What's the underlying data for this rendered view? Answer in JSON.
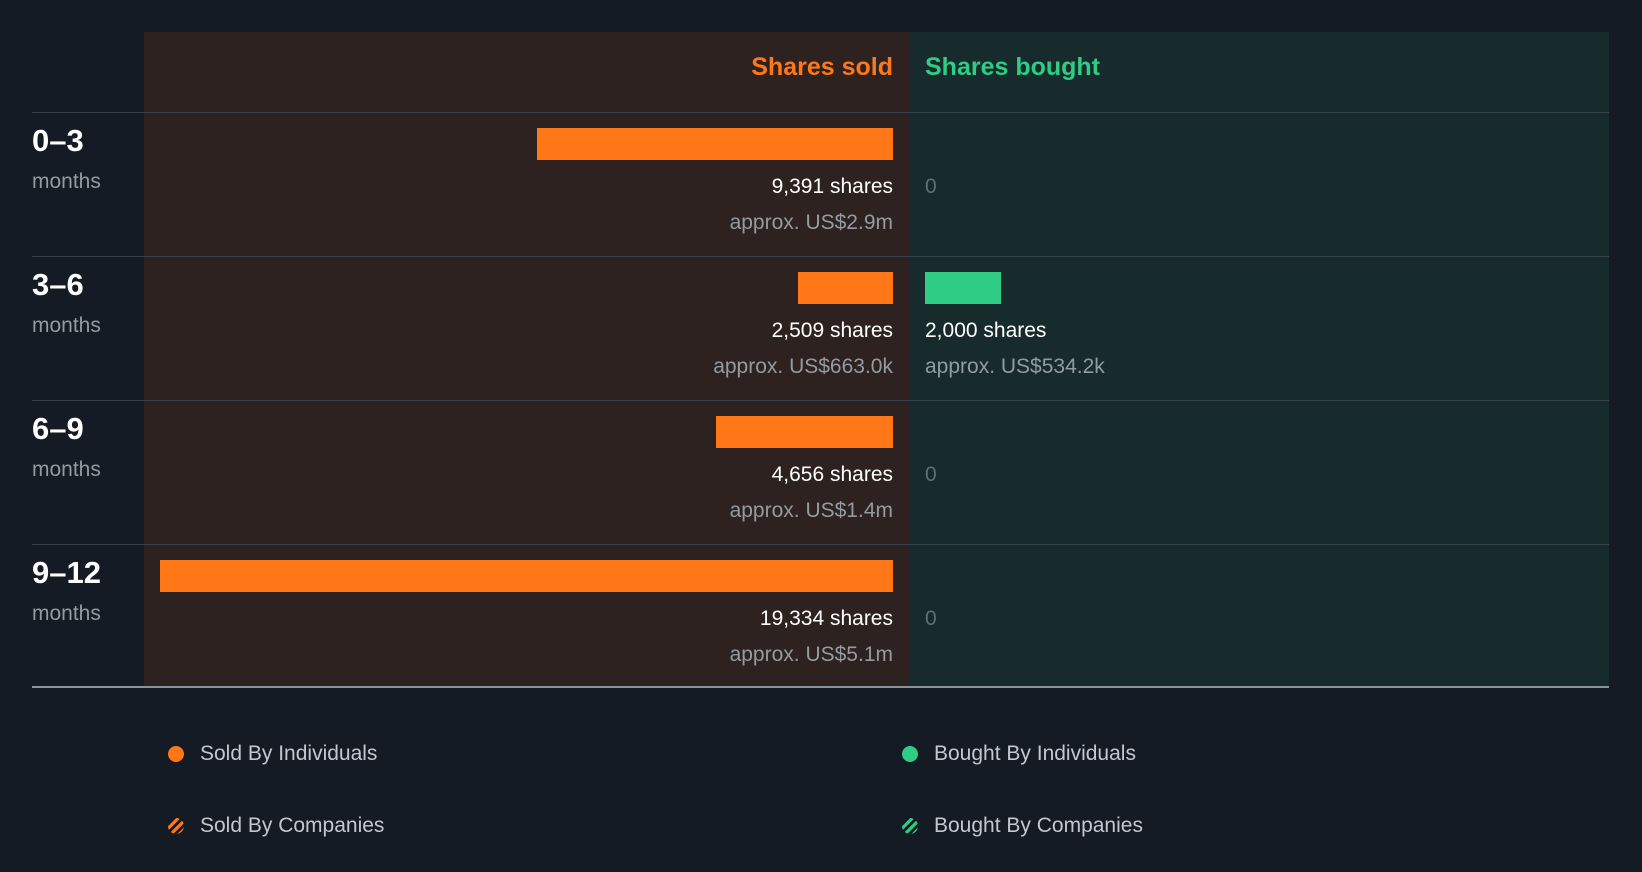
{
  "chart_data": {
    "type": "bar",
    "title": "",
    "headers": {
      "sold": "Shares sold",
      "bought": "Shares bought"
    },
    "categories": [
      "0–3",
      "3–6",
      "6–9",
      "9–12"
    ],
    "category_unit": "months",
    "series": [
      {
        "name": "Shares sold",
        "values": [
          9391,
          2509,
          4656,
          19334
        ]
      },
      {
        "name": "Shares bought",
        "values": [
          0,
          2000,
          0,
          0
        ]
      }
    ],
    "rows": [
      {
        "period": "0–3",
        "unit": "months",
        "sold": 9391,
        "sold_label": "9,391 shares",
        "sold_value_label": "approx. US$2.9m",
        "bought": 0,
        "bought_label": "0",
        "bought_value_label": ""
      },
      {
        "period": "3–6",
        "unit": "months",
        "sold": 2509,
        "sold_label": "2,509 shares",
        "sold_value_label": "approx. US$663.0k",
        "bought": 2000,
        "bought_label": "2,000 shares",
        "bought_value_label": "approx. US$534.2k"
      },
      {
        "period": "6–9",
        "unit": "months",
        "sold": 4656,
        "sold_label": "4,656 shares",
        "sold_value_label": "approx. US$1.4m",
        "bought": 0,
        "bought_label": "0",
        "bought_value_label": ""
      },
      {
        "period": "9–12",
        "unit": "months",
        "sold": 19334,
        "sold_label": "19,334 shares",
        "sold_value_label": "approx. US$5.1m",
        "bought": 0,
        "bought_label": "0",
        "bought_value_label": ""
      }
    ],
    "legend": [
      {
        "label": "Sold By Individuals",
        "style": "solid-orange"
      },
      {
        "label": "Bought By Individuals",
        "style": "solid-green"
      },
      {
        "label": "Sold By Companies",
        "style": "striped-orange"
      },
      {
        "label": "Bought By Companies",
        "style": "striped-green"
      }
    ]
  },
  "colors": {
    "sold": "#ff7717",
    "bought": "#2ecc84",
    "background": "#151b24",
    "sold_panel": "#2e2220",
    "bought_panel": "#172b2c"
  }
}
